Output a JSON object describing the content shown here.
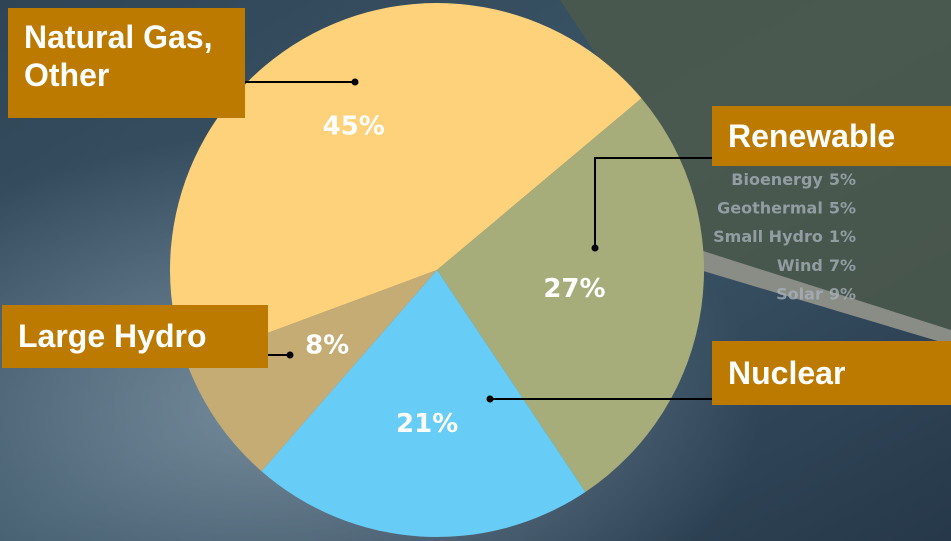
{
  "chart_data": {
    "type": "pie",
    "categories": [
      "Natural Gas, Other",
      "Renewable",
      "Nuclear",
      "Large Hydro"
    ],
    "values": [
      45,
      27,
      21,
      8
    ],
    "value_labels": [
      "45%",
      "27%",
      "21%",
      "8%"
    ],
    "colors": [
      "#fdd27a",
      "#a6ad7a",
      "#67cdf6",
      "#c5ab74"
    ],
    "renewable_breakdown": {
      "categories": [
        "Bioenergy",
        "Geothermal",
        "Small Hydro",
        "Wind",
        "Solar"
      ],
      "values": [
        5,
        5,
        1,
        7,
        9
      ],
      "value_labels": [
        "5%",
        "5%",
        "1%",
        "7%",
        "9%"
      ]
    }
  }
}
